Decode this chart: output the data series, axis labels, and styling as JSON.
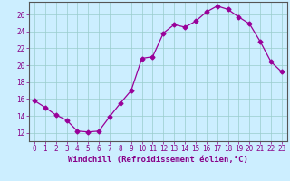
{
  "x": [
    0,
    1,
    2,
    3,
    4,
    5,
    6,
    7,
    8,
    9,
    10,
    11,
    12,
    13,
    14,
    15,
    16,
    17,
    18,
    19,
    20,
    21,
    22,
    23
  ],
  "y": [
    15.8,
    15.0,
    14.1,
    13.5,
    12.2,
    12.1,
    12.2,
    13.9,
    15.5,
    17.0,
    20.8,
    21.0,
    23.8,
    24.8,
    24.5,
    25.2,
    26.3,
    27.0,
    26.6,
    25.7,
    24.9,
    22.8,
    20.4,
    19.2
  ],
  "line_color": "#990099",
  "marker": "D",
  "markersize": 2.5,
  "linewidth": 0.9,
  "bg_color": "#cceeff",
  "grid_color": "#99cccc",
  "xlabel": "Windchill (Refroidissement éolien,°C)",
  "xlabel_fontsize": 6.5,
  "tick_label_color": "#880088",
  "ylim": [
    11,
    27.5
  ],
  "xlim": [
    -0.5,
    23.5
  ],
  "yticks": [
    12,
    14,
    16,
    18,
    20,
    22,
    24,
    26
  ],
  "xtick_labels": [
    "0",
    "1",
    "2",
    "3",
    "4",
    "5",
    "6",
    "7",
    "8",
    "9",
    "10",
    "11",
    "12",
    "13",
    "14",
    "15",
    "16",
    "17",
    "18",
    "19",
    "20",
    "21",
    "22",
    "23"
  ],
  "tick_fontsize": 5.5,
  "spine_color": "#555555"
}
